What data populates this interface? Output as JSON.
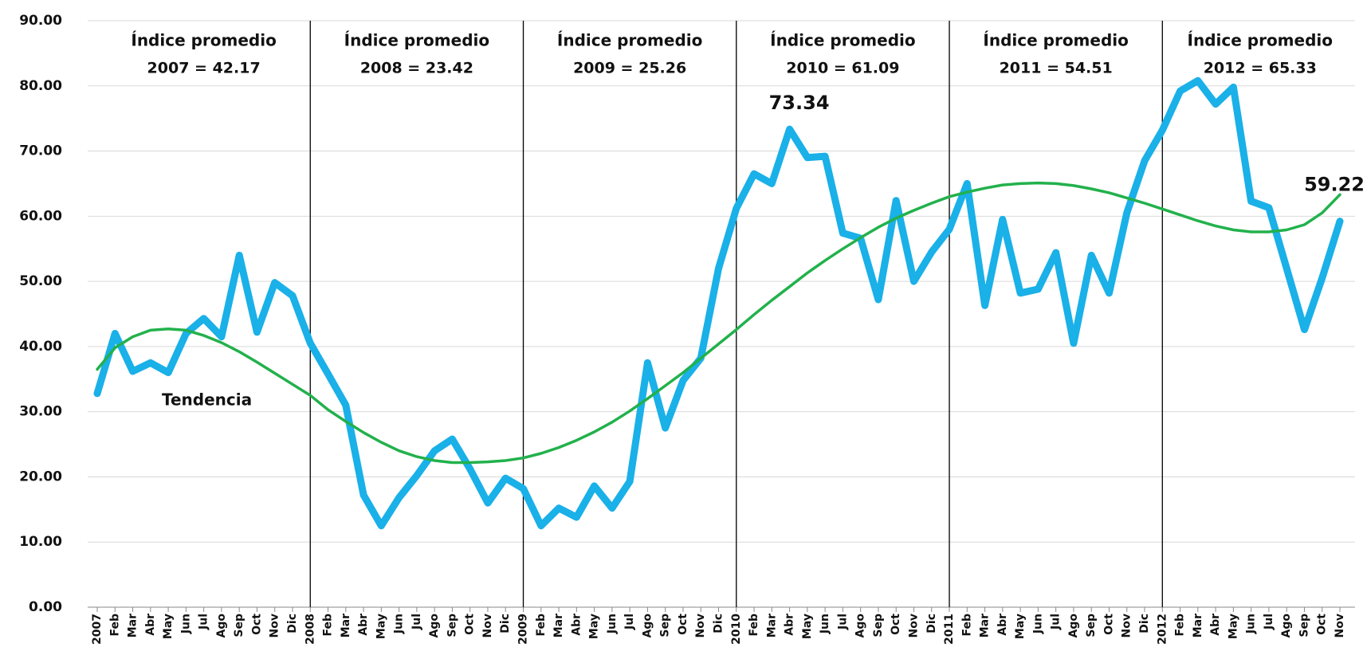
{
  "chart_data": {
    "type": "line",
    "categories": [
      "2007",
      "Feb",
      "Mar",
      "Abr",
      "May",
      "Jun",
      "Jul",
      "Ago",
      "Sep",
      "Oct",
      "Nov",
      "Dic",
      "2008",
      "Feb",
      "Mar",
      "Abr",
      "May",
      "Jun",
      "Jul",
      "Ago",
      "Sep",
      "Oct",
      "Nov",
      "Dic",
      "2009",
      "Feb",
      "Mar",
      "Abr",
      "May",
      "Jun",
      "Jul",
      "Ago",
      "Sep",
      "Oct",
      "Nov",
      "Dic",
      "2010",
      "Feb",
      "Mar",
      "Abr",
      "May",
      "Jun",
      "Jul",
      "Ago",
      "Sep",
      "Oct",
      "Nov",
      "Dic",
      "2011",
      "Feb",
      "Mar",
      "Abr",
      "May",
      "Jun",
      "Jul",
      "Ago",
      "Sep",
      "Oct",
      "Nov",
      "Dic",
      "2012",
      "Feb",
      "Mar",
      "Abr",
      "May",
      "Jun",
      "Jul",
      "Ago",
      "Sep",
      "Oct",
      "Nov"
    ],
    "series": [
      {
        "color": "#1ab0e8",
        "values": [
          32.8,
          42,
          36.2,
          37.5,
          36,
          42,
          44.3,
          41.5,
          54,
          42.2,
          49.8,
          47.8,
          40.5,
          35.8,
          31,
          17.2,
          12.5,
          16.8,
          20.2,
          24,
          25.8,
          21.2,
          16,
          19.8,
          18.2,
          12.5,
          15.2,
          13.8,
          18.6,
          15.2,
          19.3,
          37.5,
          27.5,
          34.8,
          38.2,
          52,
          61.2,
          66.5,
          65,
          73.34,
          69,
          69.2,
          57.4,
          56.6,
          47.2,
          62.4,
          50,
          54.5,
          58,
          65,
          46.3,
          59.5,
          48.2,
          48.8,
          54.4,
          40.5,
          54,
          48.2,
          60.5,
          68.5,
          73.2,
          79.2,
          80.8,
          77.2,
          79.8,
          62.3,
          61.3,
          52,
          42.6,
          50.5,
          59.22
        ]
      },
      {
        "name": "Tendencia",
        "color": "#22b14c",
        "values": [
          36.5,
          39.8,
          41.5,
          42.5,
          42.7,
          42.5,
          41.7,
          40.6,
          39.2,
          37.6,
          35.9,
          34.2,
          32.5,
          30.3,
          28.5,
          26.8,
          25.3,
          24.0,
          23.1,
          22.5,
          22.2,
          22.2,
          22.3,
          22.5,
          22.9,
          23.6,
          24.5,
          25.6,
          26.9,
          28.4,
          30.1,
          32.0,
          34.0,
          36.0,
          38.2,
          40.4,
          42.6,
          44.9,
          47.1,
          49.2,
          51.3,
          53.2,
          55.0,
          56.7,
          58.3,
          59.7,
          60.9,
          62.0,
          63.0,
          63.7,
          64.3,
          64.8,
          65.0,
          65.1,
          65.0,
          64.7,
          64.2,
          63.6,
          62.8,
          62.0,
          61.1,
          60.2,
          59.3,
          58.5,
          57.9,
          57.6,
          57.6,
          57.9,
          58.7,
          60.5,
          63.3
        ]
      }
    ],
    "ylim": [
      0,
      90
    ],
    "yticks": [
      {
        "value": 0,
        "label": "0.00"
      },
      {
        "value": 10,
        "label": "10.00"
      },
      {
        "value": 20,
        "label": "20.00"
      },
      {
        "value": 30,
        "label": "30.00"
      },
      {
        "value": 40,
        "label": "40.00"
      },
      {
        "value": 50,
        "label": "50.00"
      },
      {
        "value": 60,
        "label": "60.00"
      },
      {
        "value": 70,
        "label": "70.00"
      },
      {
        "value": 80,
        "label": "80.00"
      },
      {
        "value": 90,
        "label": "90.00"
      }
    ],
    "grid": true,
    "annotations": [
      {
        "title": "Índice promedio",
        "text": "2007 = 42.17"
      },
      {
        "title": "Índice promedio",
        "text": "2008 = 23.42"
      },
      {
        "title": "Índice promedio",
        "text": "2009 = 25.26"
      },
      {
        "title": "Índice promedio",
        "text": "2010 = 61.09"
      },
      {
        "title": "Índice promedio",
        "text": "2011 = 54.51"
      },
      {
        "title": "Índice promedio",
        "text": "2012 = 65.33"
      }
    ]
  }
}
